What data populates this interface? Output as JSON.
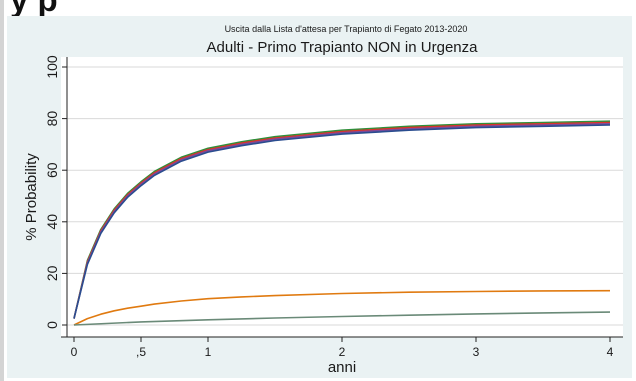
{
  "page": {
    "clipped_heading": "y p"
  },
  "chart_data": {
    "type": "line",
    "supertitle": "Uscita dalla Lista d'attesa per  Trapianto di Fegato 2013-2020",
    "title": "Adulti - Primo Trapianto NON in Urgenza",
    "xlabel": "anni",
    "ylabel": "% Probability",
    "xlim": [
      0,
      4
    ],
    "ylim": [
      0,
      100
    ],
    "x_ticks": [
      {
        "value": 0,
        "label": "0"
      },
      {
        "value": 0.5,
        "label": ",5"
      },
      {
        "value": 1,
        "label": "1"
      },
      {
        "value": 2,
        "label": "2"
      },
      {
        "value": 3,
        "label": "3"
      },
      {
        "value": 4,
        "label": "4"
      }
    ],
    "y_ticks": [
      {
        "value": 0,
        "label": "0"
      },
      {
        "value": 20,
        "label": "20"
      },
      {
        "value": 40,
        "label": "40"
      },
      {
        "value": 60,
        "label": "60"
      },
      {
        "value": 80,
        "label": "80"
      },
      {
        "value": 100,
        "label": "100"
      }
    ],
    "grid": "horizontal",
    "legend": "none",
    "series": [
      {
        "color": "#2f8f3a",
        "x": [
          0,
          0.1,
          0.2,
          0.3,
          0.4,
          0.5,
          0.6,
          0.8,
          1,
          1.25,
          1.5,
          2,
          2.5,
          3,
          3.5,
          4
        ],
        "values": [
          2.5,
          25,
          37,
          45,
          51,
          55.5,
          59.5,
          65,
          68.5,
          71,
          73,
          75.5,
          77,
          78,
          78.5,
          79
        ]
      },
      {
        "color": "#d9342b",
        "x": [
          0,
          0.1,
          0.2,
          0.3,
          0.4,
          0.5,
          0.6,
          0.8,
          1,
          1.25,
          1.5,
          2,
          2.5,
          3,
          3.5,
          4
        ],
        "values": [
          2.5,
          24.5,
          36.5,
          44.5,
          50.5,
          55,
          59,
          64.5,
          68,
          70.5,
          72.5,
          75,
          76.5,
          77.5,
          78,
          78.5
        ]
      },
      {
        "color": "#7a4a9c",
        "x": [
          0,
          0.1,
          0.2,
          0.3,
          0.4,
          0.5,
          0.6,
          0.8,
          1,
          1.25,
          1.5,
          2,
          2.5,
          3,
          3.5,
          4
        ],
        "values": [
          2.5,
          24,
          36,
          44,
          50,
          54.5,
          58.5,
          64,
          67.5,
          70,
          72,
          74.5,
          76,
          77,
          77.5,
          78
        ]
      },
      {
        "color": "#2a4d8f",
        "x": [
          0,
          0.1,
          0.2,
          0.3,
          0.4,
          0.5,
          0.6,
          0.8,
          1,
          1.25,
          1.5,
          2,
          2.5,
          3,
          3.5,
          4
        ],
        "values": [
          2.5,
          23.5,
          35.5,
          43.5,
          49.5,
          54,
          58,
          63.5,
          67,
          69.5,
          71.5,
          74,
          75.5,
          76.5,
          77,
          77.5
        ]
      },
      {
        "color": "#e07a10",
        "x": [
          0,
          0.1,
          0.2,
          0.3,
          0.4,
          0.5,
          0.6,
          0.8,
          1,
          1.25,
          1.5,
          2,
          2.5,
          3,
          3.5,
          4
        ],
        "values": [
          0,
          2.5,
          4.2,
          5.5,
          6.5,
          7.3,
          8.1,
          9.3,
          10.2,
          10.9,
          11.4,
          12.2,
          12.7,
          13,
          13.2,
          13.3
        ]
      },
      {
        "color": "#6a8a78",
        "x": [
          0,
          0.5,
          1,
          1.5,
          2,
          2.5,
          3,
          3.5,
          4
        ],
        "values": [
          0,
          1.2,
          2,
          2.7,
          3.3,
          3.8,
          4.3,
          4.7,
          5
        ]
      }
    ]
  }
}
